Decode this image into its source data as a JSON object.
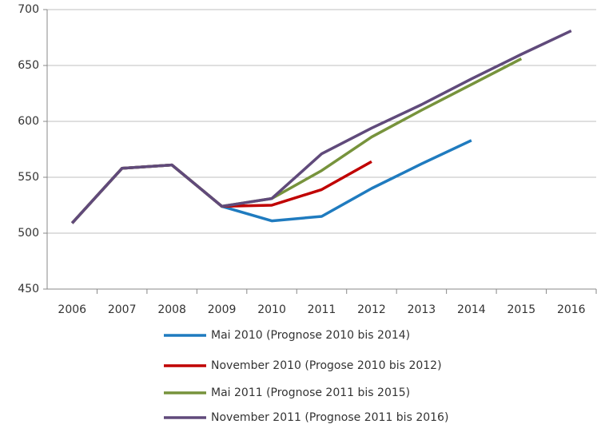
{
  "chart_data": {
    "type": "line",
    "categories": [
      "2006",
      "2007",
      "2008",
      "2009",
      "2010",
      "2011",
      "2012",
      "2013",
      "2014",
      "2015",
      "2016"
    ],
    "series": [
      {
        "name": "Mai 2010 (Prognose 2010 bis 2014)",
        "color": "#1f7bbf",
        "values": [
          509,
          558,
          561,
          524,
          511,
          515,
          540,
          562,
          583,
          null,
          null
        ]
      },
      {
        "name": "November 2010 (Progose 2010 bis 2012)",
        "color": "#c00000",
        "values": [
          509,
          558,
          561,
          524,
          525,
          539,
          564,
          null,
          null,
          null,
          null
        ]
      },
      {
        "name": "Mai 2011 (Prognose 2011 bis 2015)",
        "color": "#77933c",
        "values": [
          509,
          558,
          561,
          524,
          531,
          556,
          586,
          610,
          633,
          656,
          null
        ]
      },
      {
        "name": "November 2011 (Prognose 2011 bis 2016)",
        "color": "#604a7b",
        "values": [
          509,
          558,
          561,
          524,
          531,
          571,
          594,
          615,
          638,
          660,
          681
        ]
      }
    ],
    "ylim": [
      450,
      700
    ],
    "yticks": [
      450,
      500,
      550,
      600,
      650,
      700
    ],
    "grid": true,
    "legend": "bottom"
  }
}
